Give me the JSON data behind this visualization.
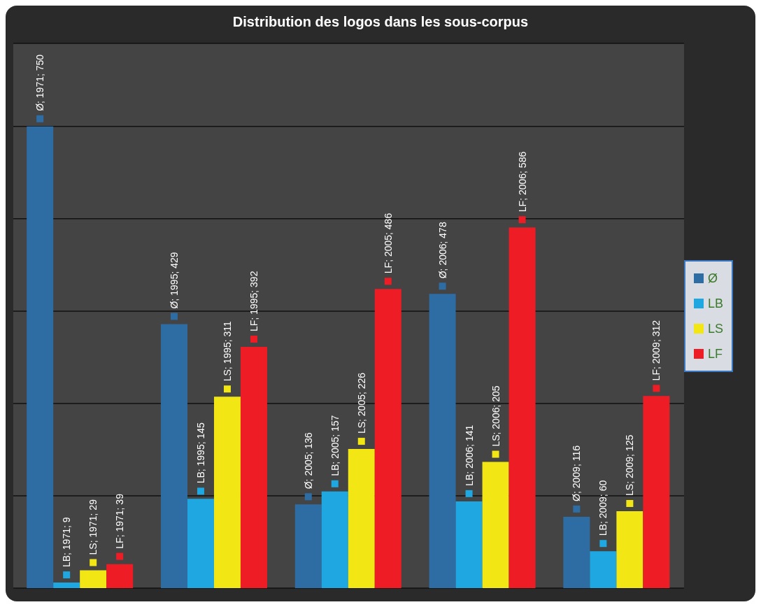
{
  "chart_data": {
    "type": "bar",
    "title": "Distribution des logos dans les sous-corpus",
    "categories": [
      null,
      null,
      null,
      null,
      null
    ],
    "series": [
      {
        "name": "Ø",
        "color": "#2e6da4",
        "values": [
          750,
          429,
          136,
          478,
          116
        ],
        "value_labels": [
          "Ø; 1971; 750",
          "Ø; 1995; 429",
          "Ø; 2005; 136",
          "Ø; 2006; 478",
          "Ø; 2009; 116"
        ]
      },
      {
        "name": "LB",
        "color": "#1ea7e0",
        "values": [
          9,
          145,
          157,
          141,
          60
        ],
        "value_labels": [
          "LB; 1971; 9",
          "LB; 1995; 145",
          "LB; 2005; 157",
          "LB; 2006; 141",
          "LB; 2009; 60"
        ]
      },
      {
        "name": "LS",
        "color": "#f2e614",
        "values": [
          29,
          311,
          226,
          205,
          125
        ],
        "value_labels": [
          "LS; 1971; 29",
          "LS; 1995; 311",
          "LS; 2005; 226",
          "LS; 2006; 205",
          "LS; 2009; 125"
        ]
      },
      {
        "name": "LF",
        "color": "#ee1c25",
        "values": [
          39,
          392,
          486,
          586,
          312
        ],
        "value_labels": [
          "LF; 1971; 39",
          "LF; 1995; 392",
          "LF; 2005; 486",
          "LF; 2006; 586",
          "LF; 2009; 312"
        ]
      }
    ],
    "grid": "y",
    "legend": "right",
    "tick_labels": false
  }
}
